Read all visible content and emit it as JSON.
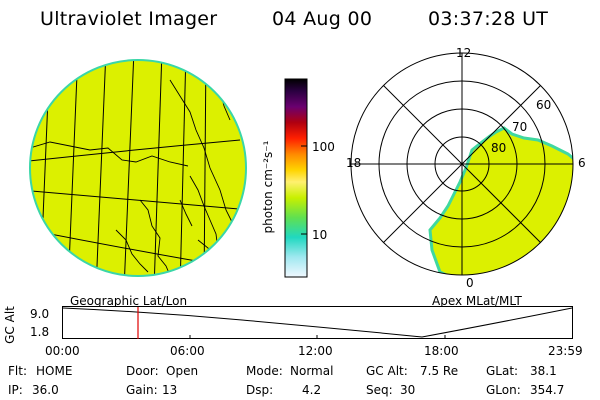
{
  "header": {
    "instrument": "Ultraviolet Imager",
    "date": "04 Aug 00",
    "time": "03:37:28 UT"
  },
  "left_panel": {
    "caption": "Geographic Lat/Lon"
  },
  "right_panel": {
    "caption": "Apex MLat/MLT",
    "mlt_labels": {
      "top": "12",
      "left": "18",
      "right": "6",
      "bottom": "0"
    },
    "lat_labels": [
      "60",
      "70",
      "80"
    ]
  },
  "colorbar": {
    "label": "photon cm⁻²s⁻¹",
    "tick_high": "100",
    "tick_low": "10"
  },
  "altitude_plot": {
    "ylabel": "GC Alt",
    "ytick_high": "9.0",
    "ytick_low": "1.8",
    "time_ticks": [
      "00:00",
      "06:00",
      "12:00",
      "18:00",
      "23:59"
    ],
    "marker_color": "#e00000"
  },
  "status": {
    "row1": [
      {
        "key": "Flt:",
        "value": "HOME"
      },
      {
        "key": "Door:",
        "value": "Open"
      },
      {
        "key": "Mode:",
        "value": "Normal"
      },
      {
        "key": "GC Alt:",
        "value": "7.5 Re"
      },
      {
        "key": "GLat:",
        "value": "38.1"
      }
    ],
    "row2": [
      {
        "key": "IP:",
        "value": "36.0"
      },
      {
        "key": "Gain:",
        "value": "13"
      },
      {
        "key": "Dsp:",
        "value": "4.2"
      },
      {
        "key": "Seq:",
        "value": "30"
      },
      {
        "key": "GLon:",
        "value": "354.7"
      }
    ]
  },
  "colors": {
    "auroral_fill": "#dcf000",
    "auroral_edge": "#40d8a0",
    "map_lines": "#000000"
  }
}
